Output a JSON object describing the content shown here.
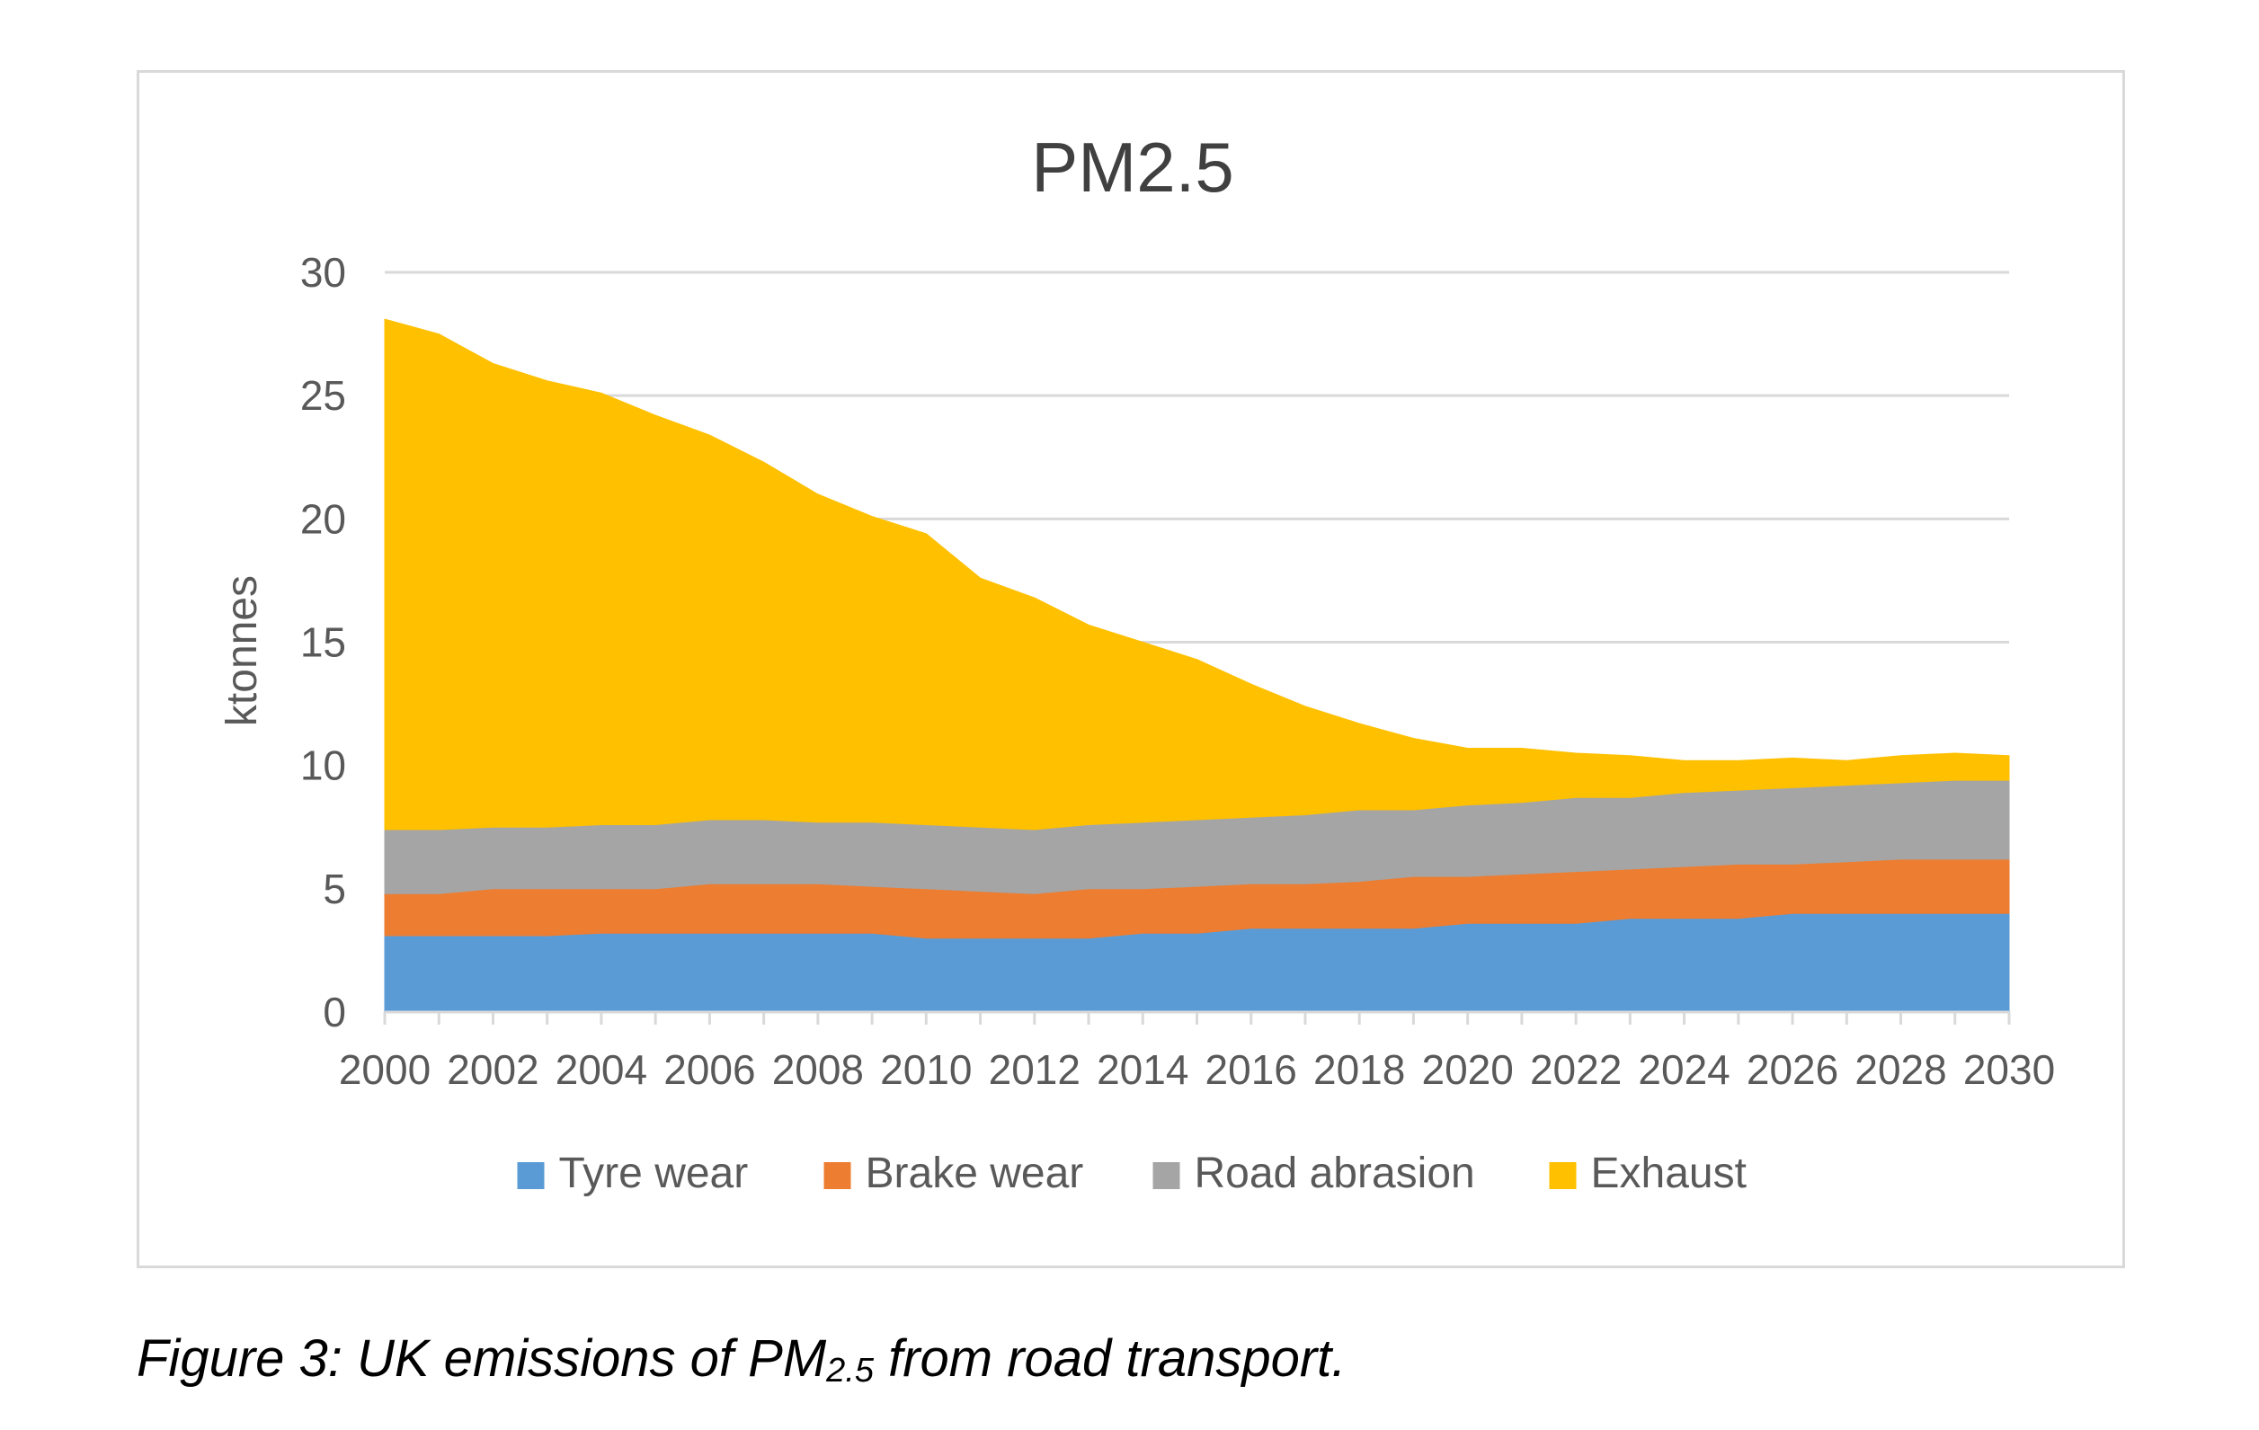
{
  "chart_data": {
    "type": "area",
    "stacked": true,
    "title": "PM2.5",
    "ylabel": "ktonnes",
    "xlabel": "",
    "ylim": [
      0,
      30
    ],
    "yticks": [
      0,
      5,
      10,
      15,
      20,
      25,
      30
    ],
    "xticks": [
      2000,
      2002,
      2004,
      2006,
      2008,
      2010,
      2012,
      2014,
      2016,
      2018,
      2020,
      2022,
      2024,
      2026,
      2028,
      2030
    ],
    "grid": true,
    "legend_position": "bottom",
    "x": [
      2000,
      2001,
      2002,
      2003,
      2004,
      2005,
      2006,
      2007,
      2008,
      2009,
      2010,
      2011,
      2012,
      2013,
      2014,
      2015,
      2016,
      2017,
      2018,
      2019,
      2020,
      2021,
      2022,
      2023,
      2024,
      2025,
      2026,
      2027,
      2028,
      2029,
      2030
    ],
    "series": [
      {
        "name": "Tyre wear",
        "color": "#5b9bd5",
        "values": [
          3.1,
          3.1,
          3.1,
          3.1,
          3.2,
          3.2,
          3.2,
          3.2,
          3.2,
          3.2,
          3.0,
          3.0,
          3.0,
          3.0,
          3.2,
          3.2,
          3.4,
          3.4,
          3.4,
          3.4,
          3.6,
          3.6,
          3.6,
          3.8,
          3.8,
          3.8,
          4.0,
          4.0,
          4.0,
          4.0,
          4.0
        ]
      },
      {
        "name": "Brake wear",
        "color": "#ed7d31",
        "values": [
          1.7,
          1.7,
          1.9,
          1.9,
          1.8,
          1.8,
          2.0,
          2.0,
          2.0,
          1.9,
          2.0,
          1.9,
          1.8,
          2.0,
          1.8,
          1.9,
          1.8,
          1.8,
          1.9,
          2.1,
          1.9,
          2.0,
          2.1,
          2.0,
          2.1,
          2.2,
          2.0,
          2.1,
          2.2,
          2.2,
          2.2
        ]
      },
      {
        "name": "Road abrasion",
        "color": "#a5a5a5",
        "values": [
          2.6,
          2.6,
          2.5,
          2.5,
          2.6,
          2.6,
          2.6,
          2.6,
          2.5,
          2.6,
          2.6,
          2.6,
          2.6,
          2.6,
          2.7,
          2.7,
          2.7,
          2.8,
          2.9,
          2.7,
          2.9,
          2.9,
          3.0,
          2.9,
          3.0,
          3.0,
          3.1,
          3.1,
          3.1,
          3.2,
          3.2
        ]
      },
      {
        "name": "Exhaust",
        "color": "#ffc000",
        "values": [
          20.7,
          20.1,
          18.8,
          18.1,
          17.5,
          16.6,
          15.6,
          14.5,
          13.3,
          12.4,
          11.8,
          10.1,
          9.4,
          8.1,
          7.3,
          6.5,
          5.4,
          4.4,
          3.5,
          2.9,
          2.3,
          2.2,
          1.8,
          1.7,
          1.3,
          1.2,
          1.2,
          1.0,
          1.1,
          1.1,
          1.0
        ]
      }
    ]
  },
  "caption": {
    "prefix": "Figure 3: UK emissions of PM",
    "subscript": "2.5",
    "suffix": " from road transport."
  }
}
